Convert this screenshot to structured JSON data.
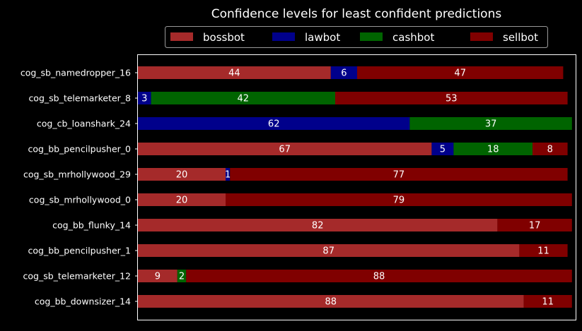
{
  "chart_data": {
    "type": "bar",
    "orientation": "horizontal",
    "stacked": true,
    "title": "Confidence levels for least confident predictions",
    "legend_position": "top",
    "xlim": [
      0,
      100
    ],
    "grid": false,
    "categories": [
      "cog_sb_namedropper_16",
      "cog_sb_telemarketer_8",
      "cog_cb_loanshark_24",
      "cog_bb_pencilpusher_0",
      "cog_sb_mrhollywood_29",
      "cog_sb_mrhollywood_0",
      "cog_bb_flunky_14",
      "cog_bb_pencilpusher_1",
      "cog_sb_telemarketer_12",
      "cog_bb_downsizer_14"
    ],
    "series": [
      {
        "name": "bossbot",
        "color": "#a52a2a",
        "values": [
          44,
          0,
          0,
          67,
          20,
          20,
          82,
          87,
          9,
          88
        ]
      },
      {
        "name": "lawbot",
        "color": "#00008b",
        "values": [
          6,
          3,
          62,
          5,
          1,
          0,
          0,
          0,
          0,
          0
        ]
      },
      {
        "name": "cashbot",
        "color": "#006400",
        "values": [
          0,
          42,
          37,
          18,
          0,
          0,
          0,
          0,
          2,
          0
        ]
      },
      {
        "name": "sellbot",
        "color": "#800000",
        "values": [
          47,
          53,
          0,
          8,
          77,
          79,
          17,
          11,
          88,
          11
        ]
      }
    ]
  }
}
